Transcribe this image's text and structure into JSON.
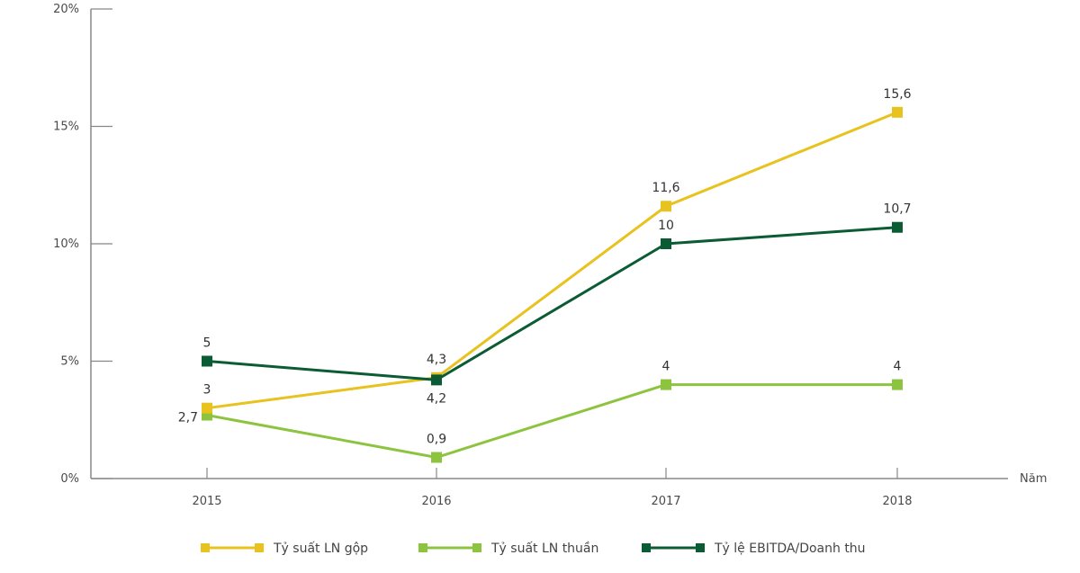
{
  "chart_data": {
    "type": "line",
    "title": "",
    "xlabel": "Năm",
    "ylabel": "",
    "categories": [
      "2015",
      "2016",
      "2017",
      "2018"
    ],
    "ylim": [
      0,
      20
    ],
    "yticks": [
      0,
      5,
      10,
      15,
      20
    ],
    "ytick_labels": [
      "0%",
      "5%",
      "10%",
      "15%",
      "20%"
    ],
    "grid": false,
    "legend_position": "bottom",
    "series": [
      {
        "name": "Tỷ suất LN gộp",
        "color": "#e8c21e",
        "values": [
          3,
          4.3,
          11.6,
          15.6
        ],
        "labels": [
          "3",
          "4,3",
          "11,6",
          "15,6"
        ],
        "label_pos": [
          "above",
          "above",
          "above",
          "above"
        ]
      },
      {
        "name": "Tỷ suất LN thuần",
        "color": "#8cc43f",
        "values": [
          2.7,
          0.9,
          4,
          4
        ],
        "labels": [
          "2,7",
          "0,9",
          "4",
          "4"
        ],
        "label_pos": [
          "left",
          "above",
          "above",
          "above"
        ]
      },
      {
        "name": "Tỷ lệ EBITDA/Doanh thu",
        "color": "#0b5b34",
        "values": [
          5,
          4.2,
          10,
          10.7
        ],
        "labels": [
          "5",
          "4,2",
          "10",
          "10,7"
        ],
        "label_pos": [
          "above",
          "below",
          "above",
          "above"
        ]
      }
    ]
  }
}
